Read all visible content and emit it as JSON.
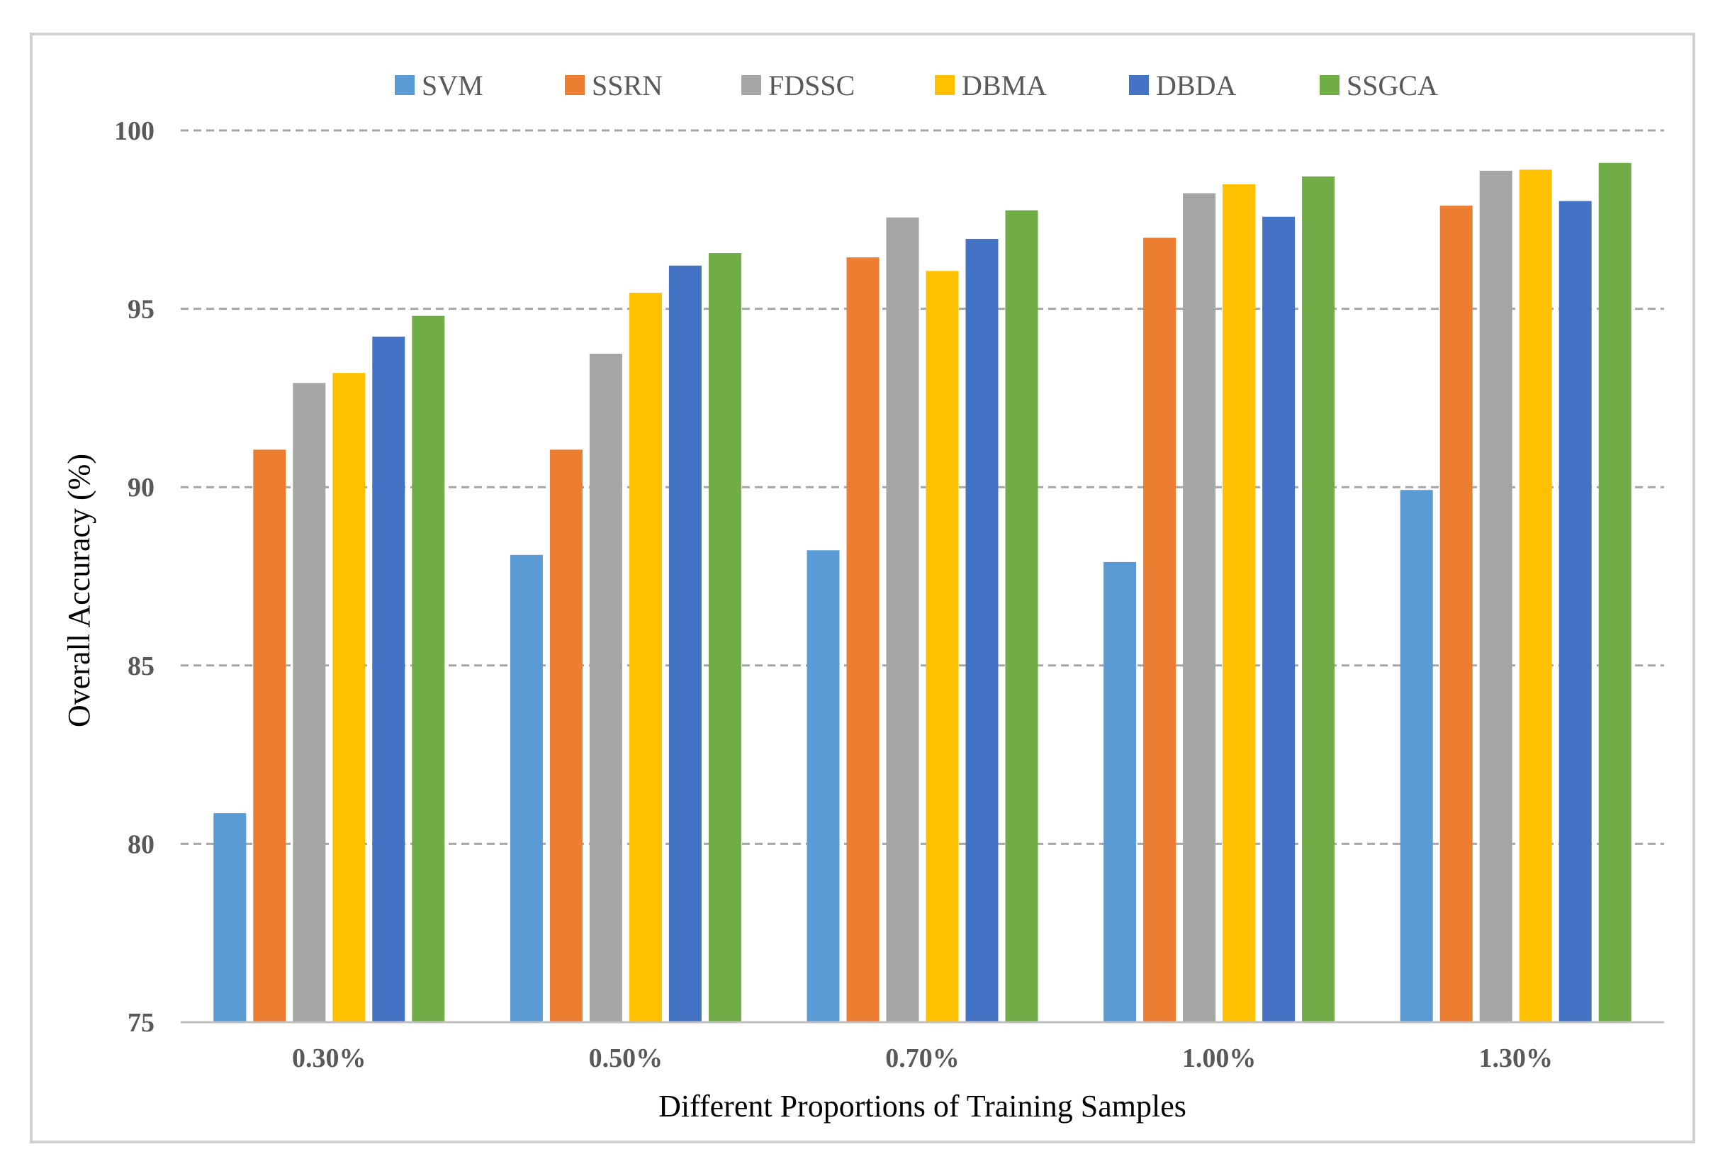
{
  "chart_data": {
    "type": "bar",
    "title": "",
    "xlabel": "Different Proportions of Training Samples",
    "ylabel": "Overall Accuracy (%)",
    "ylim": [
      75,
      100
    ],
    "yticks": [
      75,
      80,
      85,
      90,
      95,
      100
    ],
    "grid": true,
    "legend_position": "top",
    "categories": [
      "0.30%",
      "0.50%",
      "0.70%",
      "1.00%",
      "1.30%"
    ],
    "series": [
      {
        "name": "SVM",
        "color": "#5b9bd5",
        "values": [
          80.86,
          88.1,
          88.23,
          87.9,
          89.92
        ]
      },
      {
        "name": "SSRN",
        "color": "#ed7d31",
        "values": [
          91.05,
          91.05,
          96.44,
          96.99,
          97.89
        ]
      },
      {
        "name": "FDSSC",
        "color": "#a5a5a5",
        "values": [
          92.92,
          93.74,
          97.56,
          98.24,
          98.87
        ]
      },
      {
        "name": "DBMA",
        "color": "#ffc000",
        "values": [
          93.2,
          95.45,
          96.06,
          98.49,
          98.9
        ]
      },
      {
        "name": "DBDA",
        "color": "#4472c4",
        "values": [
          94.22,
          96.21,
          96.96,
          97.58,
          98.02
        ]
      },
      {
        "name": "SSGCA",
        "color": "#70ad47",
        "values": [
          94.8,
          96.56,
          97.76,
          98.71,
          99.09
        ]
      }
    ]
  }
}
